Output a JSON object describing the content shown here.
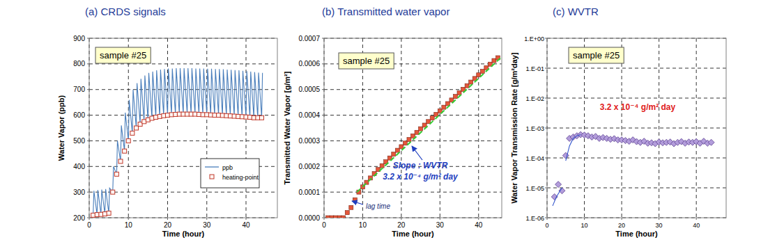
{
  "chart_data": [
    {
      "type": "line",
      "title": "(a) CRDS signals",
      "x_label": "Time (hour)",
      "y_label": "Water Vapor (ppb)",
      "annotations": [
        "sample #25"
      ],
      "xlim": [
        0,
        48
      ],
      "xticks": [
        0,
        10,
        20,
        30,
        40
      ],
      "ylim": [
        200,
        900
      ],
      "yticks": [
        200,
        300,
        400,
        500,
        600,
        700,
        800,
        900
      ],
      "grid": true,
      "legend": "lower right",
      "series": [
        {
          "name": "ppb",
          "type": "line",
          "color": "#4a7ebb",
          "x": [
            1,
            1.2,
            2,
            2.2,
            3,
            3.2,
            4,
            4.2,
            5,
            5.2,
            6,
            6.2,
            7,
            7.2,
            8,
            8.2,
            9,
            9.2,
            10,
            10.2,
            11,
            11.2,
            12,
            12.2,
            13,
            13.2,
            14,
            14.2,
            15,
            15.2,
            16,
            16.2,
            17,
            17.2,
            18,
            18.2,
            19,
            19.2,
            20,
            20.2,
            21,
            21.2,
            22,
            22.2,
            23,
            23.2,
            24,
            24.2,
            25,
            25.2,
            26,
            26.2,
            27,
            27.2,
            28,
            28.2,
            29,
            29.2,
            30,
            30.2,
            31,
            31.2,
            32,
            32.2,
            33,
            33.2,
            34,
            34.2,
            35,
            35.2,
            36,
            36.2,
            37,
            37.2,
            38,
            38.2,
            39,
            39.2,
            40,
            40.2,
            41,
            41.2,
            42,
            42.2,
            43,
            43.2,
            44,
            44.2
          ],
          "values": [
            210,
            305,
            212,
            308,
            213,
            310,
            215,
            312,
            218,
            316,
            300,
            400,
            370,
            500,
            420,
            560,
            460,
            610,
            500,
            660,
            530,
            700,
            550,
            725,
            565,
            742,
            575,
            755,
            582,
            765,
            588,
            770,
            592,
            775,
            595,
            778,
            598,
            780,
            600,
            782,
            602,
            782,
            603,
            783,
            604,
            783,
            604,
            783,
            604,
            783,
            604,
            783,
            604,
            782,
            603,
            782,
            602,
            782,
            602,
            781,
            601,
            781,
            600,
            780,
            600,
            780,
            599,
            779,
            598,
            778,
            597,
            777,
            596,
            776,
            595,
            775,
            594,
            773,
            593,
            772,
            592,
            770,
            590,
            768,
            590,
            766,
            590,
            765
          ]
        },
        {
          "name": "heating-point",
          "type": "scatter",
          "marker": "open-square",
          "color": "#c0392b",
          "x": [
            1,
            2,
            3,
            4,
            5,
            6,
            7,
            8,
            9,
            10,
            11,
            12,
            13,
            14,
            15,
            16,
            17,
            18,
            19,
            20,
            21,
            22,
            23,
            24,
            25,
            26,
            27,
            28,
            29,
            30,
            31,
            32,
            33,
            34,
            35,
            36,
            37,
            38,
            39,
            40,
            41,
            42,
            43,
            44
          ],
          "values": [
            210,
            212,
            213,
            215,
            218,
            300,
            370,
            420,
            460,
            500,
            530,
            550,
            565,
            575,
            582,
            588,
            592,
            595,
            598,
            600,
            602,
            603,
            604,
            604,
            604,
            604,
            604,
            603,
            602,
            602,
            601,
            600,
            600,
            599,
            598,
            597,
            596,
            595,
            594,
            593,
            592,
            590,
            590,
            590
          ]
        }
      ]
    },
    {
      "type": "scatter",
      "title": "(b) Transmitted water vapor",
      "x_label": "Time (hour)",
      "y_label": "Transmitted Water Vapor [g/m²]",
      "annotations": [
        "sample #25",
        "Slope : WVTR",
        "3.2 x 10⁻⁴ g/m² day",
        "lag time"
      ],
      "xlim": [
        0,
        46
      ],
      "xticks": [
        0,
        10,
        20,
        30,
        40
      ],
      "ylim": [
        0,
        0.0007
      ],
      "yticks": [
        {
          "value": 0,
          "label": "0.0000"
        },
        {
          "value": 0.0001,
          "label": "0.0001"
        },
        {
          "value": 0.0002,
          "label": "0.0002"
        },
        {
          "value": 0.0003,
          "label": "0.0003"
        },
        {
          "value": 0.0004,
          "label": "0.0004"
        },
        {
          "value": 0.0005,
          "label": "0.0005"
        },
        {
          "value": 0.0006,
          "label": "0.0006"
        },
        {
          "value": 0.0007,
          "label": "0.0007"
        }
      ],
      "grid": true,
      "series": [
        {
          "type": "scatter",
          "marker": "square",
          "color": "#e4573b",
          "x": [
            1,
            2,
            3,
            4,
            5,
            6,
            7,
            8,
            9,
            10,
            11,
            12,
            13,
            14,
            15,
            16,
            17,
            18,
            19,
            20,
            21,
            22,
            23,
            24,
            25,
            26,
            27,
            28,
            29,
            30,
            31,
            32,
            33,
            34,
            35,
            36,
            37,
            38,
            39,
            40,
            41,
            42,
            43,
            44,
            45
          ],
          "values": [
            0,
            0,
            0,
            0,
            0,
            2e-05,
            4e-05,
            7e-05,
            0.0001,
            0.00012,
            0.000138,
            0.000155,
            0.000172,
            0.000188,
            0.000203,
            0.000218,
            0.000233,
            0.000248,
            0.000263,
            0.000277,
            0.000291,
            0.000305,
            0.000319,
            0.000333,
            0.000347,
            0.000361,
            0.000375,
            0.000389,
            0.000403,
            0.000417,
            0.000431,
            0.000445,
            0.000459,
            0.000473,
            0.000487,
            0.000501,
            0.000515,
            0.000529,
            0.000543,
            0.000557,
            0.000571,
            0.000585,
            0.000599,
            0.000613,
            0.000624
          ]
        },
        {
          "type": "line",
          "line_style": "dashed",
          "color": "#33cc33",
          "x": [
            8.5,
            46
          ],
          "values": [
            0.0001,
            0.000628
          ]
        }
      ]
    },
    {
      "type": "scatter",
      "title": "(c) WVTR",
      "x_label": "Time (hour)",
      "y_label": "Water Vapor Transmission Rate [g/m²day]",
      "annotations": [
        "sample #25",
        "3.2 x 10⁻⁴ g/m² day"
      ],
      "log": "y",
      "xlim": [
        0,
        48
      ],
      "xticks": [
        0,
        10,
        20,
        30,
        40
      ],
      "ylim": [
        1e-06,
        1
      ],
      "yticks": [
        {
          "value": 1e-06,
          "label": "1.E-06"
        },
        {
          "value": 1e-05,
          "label": "1.E-05"
        },
        {
          "value": 0.0001,
          "label": "1.E-04"
        },
        {
          "value": 0.001,
          "label": "1.E-03"
        },
        {
          "value": 0.01,
          "label": "1.E-02"
        },
        {
          "value": 0.1,
          "label": "1.E-01"
        },
        {
          "value": 1,
          "label": "1.E+00"
        }
      ],
      "grid": true,
      "series": [
        {
          "type": "scatter",
          "marker": "diamond",
          "color": "#b39ddb",
          "x": [
            2,
            3,
            4,
            5,
            6,
            7,
            8,
            9,
            10,
            11,
            12,
            13,
            14,
            15,
            16,
            17,
            18,
            19,
            20,
            21,
            22,
            23,
            24,
            25,
            26,
            27,
            28,
            29,
            30,
            31,
            32,
            33,
            34,
            35,
            36,
            37,
            38,
            39,
            40,
            41,
            42,
            43,
            44
          ],
          "values": [
            5e-06,
            1.3e-05,
            8e-06,
            0.00012,
            0.00045,
            0.0005,
            0.00055,
            0.0006,
            0.00058,
            0.00055,
            0.0005,
            0.00052,
            0.00045,
            0.00048,
            0.00045,
            0.00042,
            0.00044,
            0.0004,
            0.0004,
            0.00038,
            0.00036,
            0.0004,
            0.00035,
            0.00033,
            0.00036,
            0.00031,
            0.00032,
            0.0003,
            0.00034,
            0.00032,
            0.00033,
            0.00034,
            0.0003,
            0.00033,
            0.00035,
            0.00031,
            0.00034,
            0.00033,
            0.00035,
            0.00031,
            0.00036,
            0.00031,
            0.00033
          ]
        },
        {
          "type": "line",
          "color": "#3355cc",
          "x": [
            1.5,
            2.5,
            3.5,
            4,
            4.5,
            5,
            6,
            7,
            8,
            9
          ],
          "values": [
            2.5e-06,
            5e-06,
            8e-06,
            1e-05,
            null,
            8e-05,
            0.00025,
            0.00045,
            0.00055,
            0.0006
          ]
        }
      ]
    }
  ]
}
